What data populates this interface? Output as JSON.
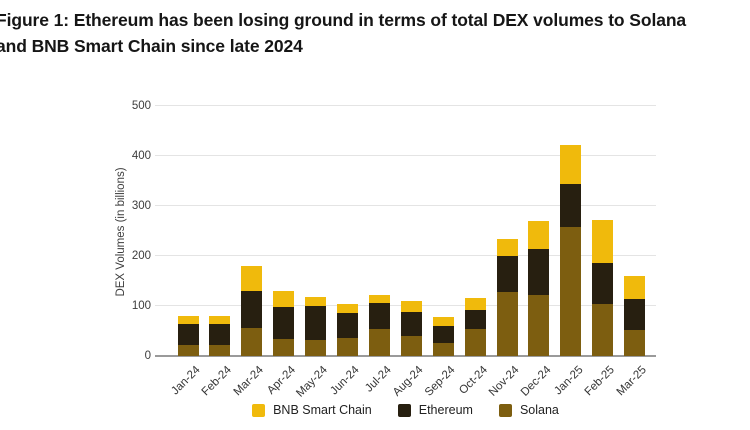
{
  "figure": {
    "title_line1": "Figure 1: Ethereum has been losing ground in terms of total DEX volumes to Solana",
    "title_line2": "and BNB Smart Chain since late 2024"
  },
  "chart_data": {
    "type": "bar",
    "stacked": true,
    "title": "Figure 1: Ethereum has been losing ground in terms of total DEX volumes to Solana and BNB Smart Chain since late 2024",
    "categories": [
      "Jan-24",
      "Feb-24",
      "Mar-24",
      "Apr-24",
      "May-24",
      "Jun-24",
      "Jul-24",
      "Aug-24",
      "Sep-24",
      "Oct-24",
      "Nov-24",
      "Dec-24",
      "Jan-25",
      "Feb-25",
      "Mar-25"
    ],
    "series": [
      {
        "name": "BNB Smart Chain",
        "color": "#F0BA0C",
        "values": [
          17,
          17,
          49,
          31,
          18,
          18,
          16,
          22,
          18,
          23,
          35,
          57,
          78,
          85,
          46
        ]
      },
      {
        "name": "Ethereum",
        "color": "#271F10",
        "values": [
          42,
          42,
          74,
          65,
          69,
          50,
          53,
          48,
          33,
          39,
          72,
          92,
          87,
          82,
          63
        ]
      },
      {
        "name": "Solana",
        "color": "#7D5E10",
        "values": [
          22,
          22,
          57,
          34,
          32,
          37,
          54,
          40,
          27,
          54,
          128,
          122,
          258,
          105,
          52
        ]
      }
    ],
    "stack_bottom_to_top": [
      "Solana",
      "Ethereum",
      "BNB Smart Chain"
    ],
    "xlabel": "",
    "ylabel": "DEX Volumes (in billions)",
    "yticks": [
      0,
      100,
      200,
      300,
      400,
      500
    ],
    "ylim": [
      0,
      500
    ],
    "legend_position": "bottom",
    "grid": "horizontal"
  },
  "colors": {
    "background": "#ffffff",
    "title_text": "#161616",
    "axis_text": "#3d3d3d",
    "gridline": "#e4e4e4",
    "axis_line": "#9a9a9a"
  }
}
